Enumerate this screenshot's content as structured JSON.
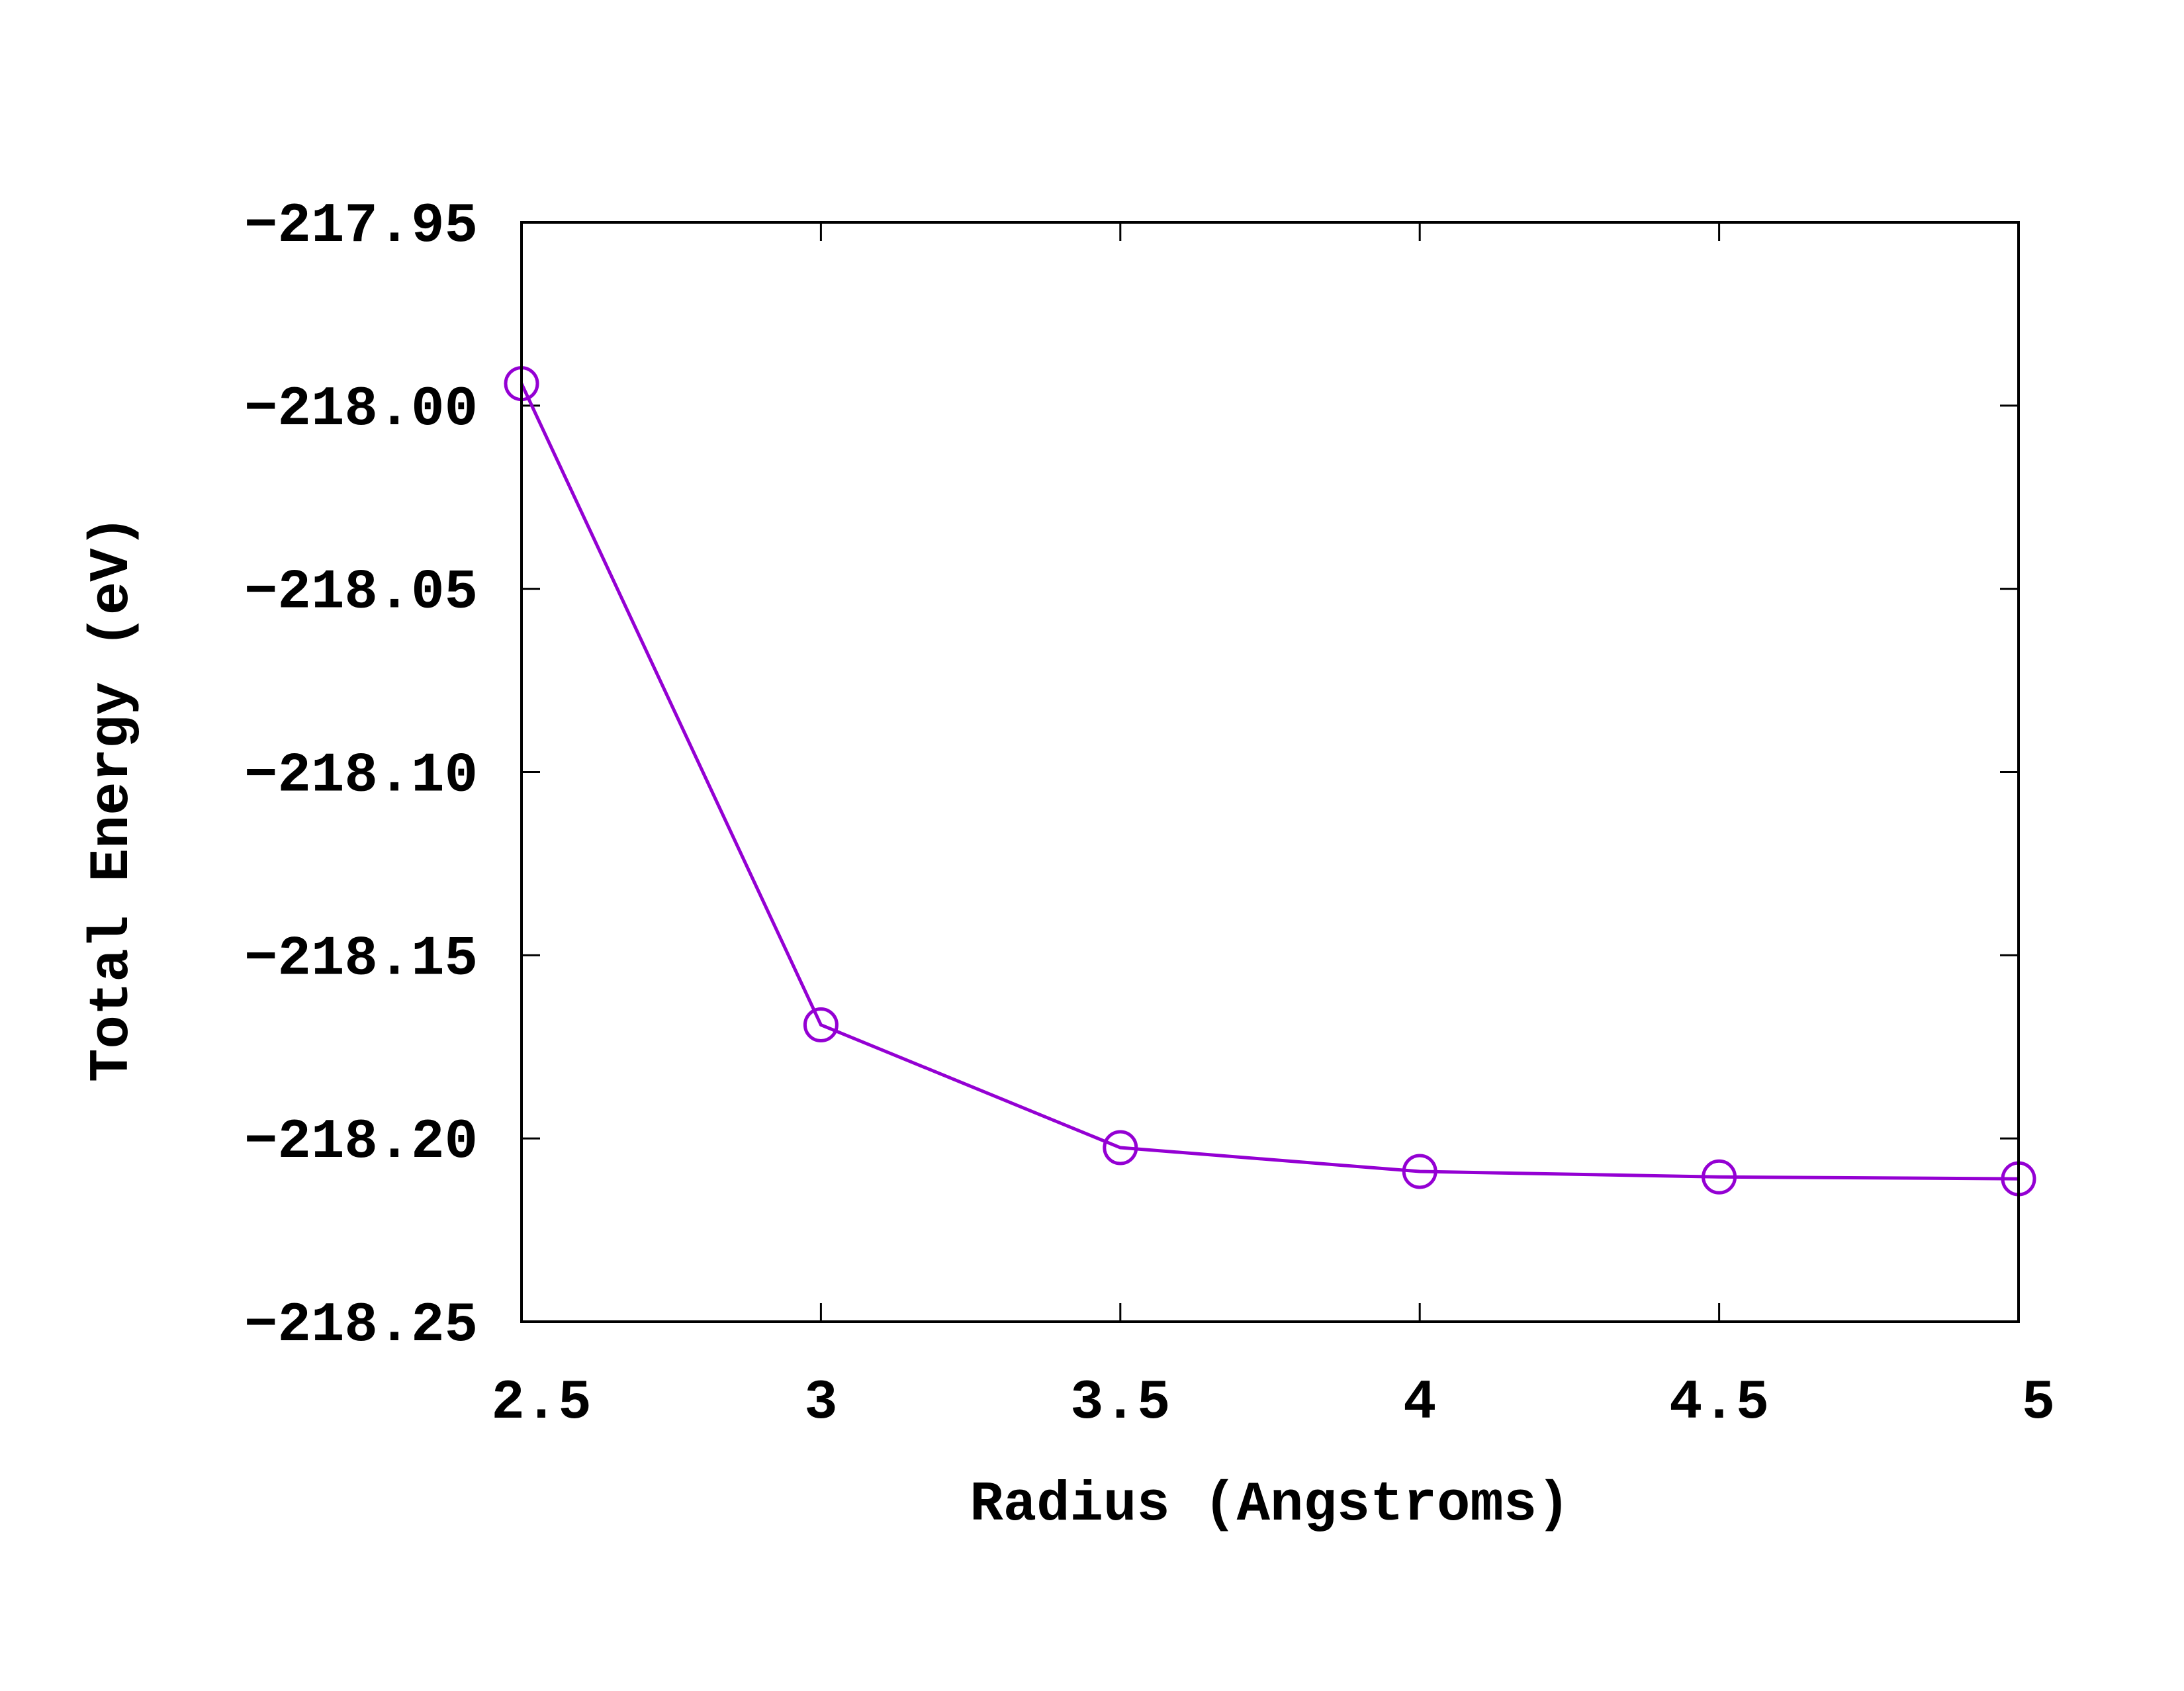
{
  "chart_data": {
    "type": "line",
    "title": "",
    "xlabel": "Radius (Angstroms)",
    "ylabel": "Total Energy (eV)",
    "xlim": [
      2.5,
      5
    ],
    "ylim": [
      -218.25,
      -217.95
    ],
    "xticks": [
      2.5,
      3,
      3.5,
      4,
      4.5,
      5
    ],
    "xtick_labels": [
      "2.5",
      "3",
      "3.5",
      "4",
      "4.5",
      "5"
    ],
    "yticks": [
      -217.95,
      -218.0,
      -218.05,
      -218.1,
      -218.15,
      -218.2,
      -218.25
    ],
    "ytick_labels": [
      "−217.95",
      "−218.00",
      "−218.05",
      "−218.10",
      "−218.15",
      "−218.20",
      "−218.25"
    ],
    "grid": false,
    "legend": "none",
    "marker": "open-circle",
    "series": [
      {
        "color": "#9400d3",
        "x": [
          2.5,
          3.0,
          3.5,
          4.0,
          4.5,
          5.0
        ],
        "y": [
          -217.994,
          -218.169,
          -218.2025,
          -218.209,
          -218.2105,
          -218.211
        ]
      }
    ]
  }
}
